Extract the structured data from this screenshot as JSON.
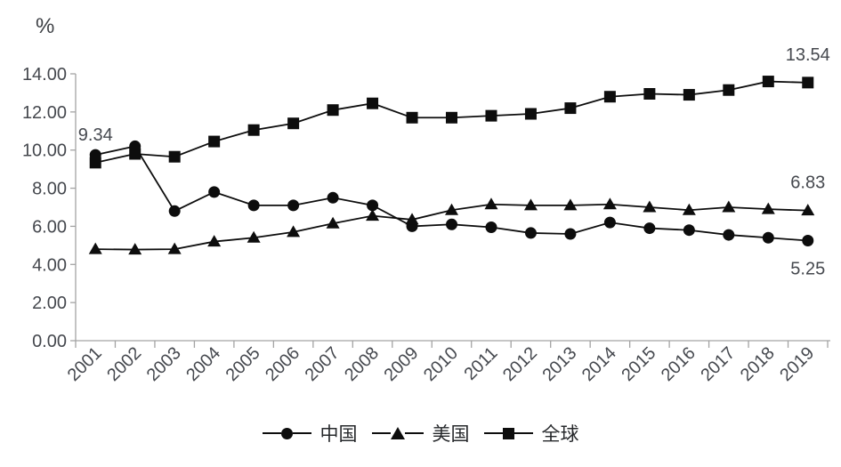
{
  "chart_data": {
    "type": "line",
    "title": "",
    "y_unit_label": "%",
    "xlabel": "",
    "ylabel": "%",
    "categories": [
      "2001",
      "2002",
      "2003",
      "2004",
      "2005",
      "2006",
      "2007",
      "2008",
      "2009",
      "2010",
      "2011",
      "2012",
      "2013",
      "2014",
      "2015",
      "2016",
      "2017",
      "2018",
      "2019"
    ],
    "series": [
      {
        "key": "china",
        "name": "中国",
        "marker": "circle",
        "values": [
          9.75,
          10.2,
          6.8,
          7.8,
          7.1,
          7.1,
          7.5,
          7.1,
          6.0,
          6.1,
          5.95,
          5.65,
          5.6,
          6.2,
          5.9,
          5.8,
          5.55,
          5.4,
          5.25
        ]
      },
      {
        "key": "usa",
        "name": "美国",
        "marker": "triangle",
        "values": [
          4.8,
          4.78,
          4.8,
          5.2,
          5.4,
          5.7,
          6.15,
          6.55,
          6.35,
          6.85,
          7.15,
          7.1,
          7.1,
          7.15,
          7.0,
          6.85,
          7.0,
          6.9,
          6.83
        ]
      },
      {
        "key": "global",
        "name": "全球",
        "marker": "square",
        "values": [
          9.34,
          9.8,
          9.65,
          10.45,
          11.05,
          11.4,
          12.1,
          12.45,
          11.7,
          11.7,
          11.8,
          11.9,
          12.2,
          12.8,
          12.95,
          12.9,
          13.15,
          13.6,
          13.54
        ]
      }
    ],
    "ylim": [
      0,
      14
    ],
    "ytick_values": [
      0,
      2,
      4,
      6,
      8,
      10,
      12,
      14
    ],
    "ytick_labels": [
      "0.00",
      "2.00",
      "4.00",
      "6.00",
      "8.00",
      "10.00",
      "12.00",
      "14.00"
    ],
    "annotations": [
      {
        "text": "9.34",
        "series": "global",
        "category": "2001",
        "placement": "above"
      },
      {
        "text": "13.54",
        "series": "global",
        "category": "2019",
        "placement": "above"
      },
      {
        "text": "6.83",
        "series": "usa",
        "category": "2019",
        "placement": "above"
      },
      {
        "text": "5.25",
        "series": "china",
        "category": "2019",
        "placement": "below"
      }
    ],
    "colors": {
      "series": "#0d0d0d",
      "axis": "#a3a3a3",
      "text": "#45484e"
    },
    "legend_position": "bottom",
    "grid": false
  }
}
